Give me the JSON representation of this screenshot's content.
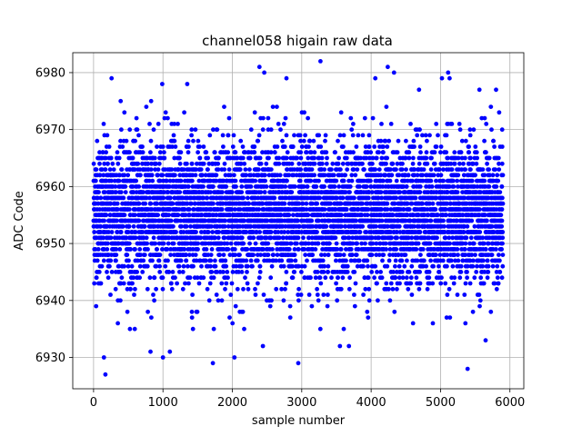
{
  "chart_data": {
    "type": "scatter",
    "title": "channel058 higain raw data",
    "xlabel": "sample number",
    "ylabel": "ADC Code",
    "xlim": [
      -300,
      6200
    ],
    "ylim": [
      6924.5,
      6983.5
    ],
    "xticks": [
      0,
      1000,
      2000,
      3000,
      4000,
      5000,
      6000
    ],
    "xtick_labels": [
      "0",
      "1000",
      "2000",
      "3000",
      "4000",
      "5000",
      "6000"
    ],
    "yticks": [
      6930,
      6940,
      6950,
      6960,
      6970,
      6980
    ],
    "ytick_labels": [
      "6930",
      "6940",
      "6950",
      "6960",
      "6970",
      "6980"
    ],
    "grid": true,
    "marker_color": "#0000ff",
    "series": [
      {
        "n_samples": 5900,
        "typical_min": 6935,
        "typical_max": 6975,
        "center": 6955.5,
        "values_note_points": [
          {
            "x": 170,
            "y": 6927
          },
          {
            "x": 150,
            "y": 6930
          },
          {
            "x": 1000,
            "y": 6930
          },
          {
            "x": 1100,
            "y": 6931
          },
          {
            "x": 820,
            "y": 6931
          },
          {
            "x": 1720,
            "y": 6929
          },
          {
            "x": 2030,
            "y": 6930
          },
          {
            "x": 2440,
            "y": 6932
          },
          {
            "x": 2950,
            "y": 6929
          },
          {
            "x": 3550,
            "y": 6932
          },
          {
            "x": 3680,
            "y": 6932
          },
          {
            "x": 5390,
            "y": 6928
          },
          {
            "x": 5650,
            "y": 6933
          },
          {
            "x": 2390,
            "y": 6981
          },
          {
            "x": 3270,
            "y": 6982
          },
          {
            "x": 4240,
            "y": 6981
          },
          {
            "x": 260,
            "y": 6979
          },
          {
            "x": 2780,
            "y": 6979
          },
          {
            "x": 4060,
            "y": 6979
          },
          {
            "x": 5020,
            "y": 6979
          },
          {
            "x": 5130,
            "y": 6979
          },
          {
            "x": 990,
            "y": 6978
          },
          {
            "x": 1350,
            "y": 6978
          },
          {
            "x": 2460,
            "y": 6980
          },
          {
            "x": 4330,
            "y": 6980
          },
          {
            "x": 5110,
            "y": 6980
          },
          {
            "x": 4690,
            "y": 6977
          },
          {
            "x": 5800,
            "y": 6977
          },
          {
            "x": 5560,
            "y": 6977
          }
        ]
      }
    ]
  }
}
